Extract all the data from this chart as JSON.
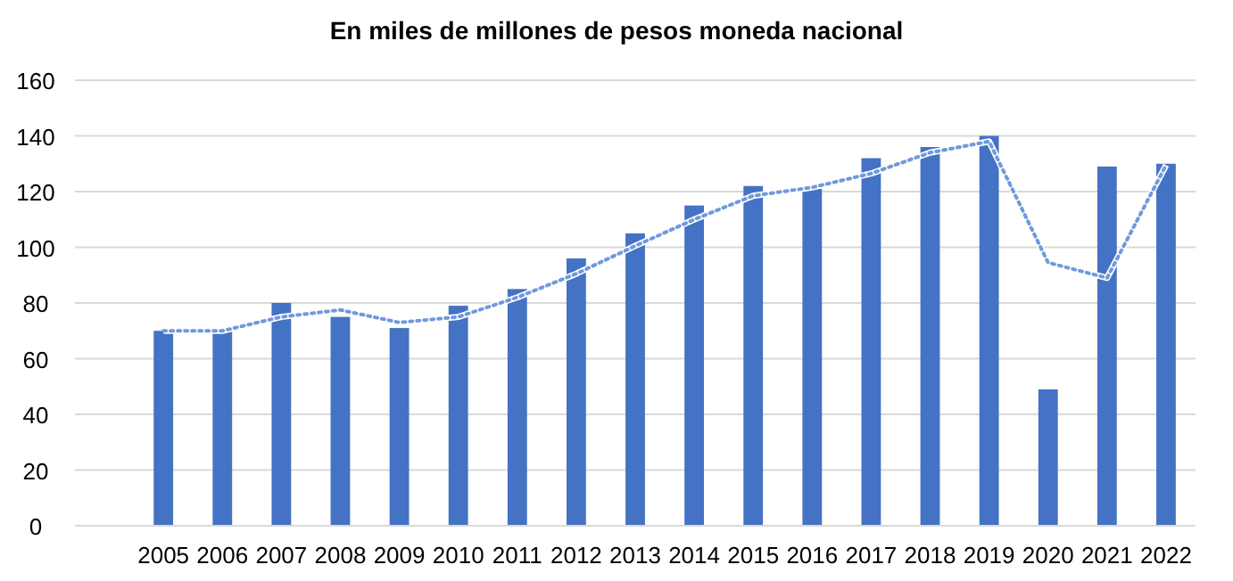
{
  "chart_data": {
    "type": "bar",
    "title": "En miles  de millones  de pesos  moneda  nacional",
    "categories": [
      null,
      "2005",
      "2006",
      "2007",
      "2008",
      "2009",
      "2010",
      "2011",
      "2012",
      "2013",
      "2014",
      "2015",
      "2016",
      "2017",
      "2018",
      "2019",
      "2020",
      "2021",
      "2022"
    ],
    "series": [
      {
        "color": "#4472c4",
        "values": [
          null,
          70,
          70,
          80,
          75,
          71,
          79,
          85,
          96,
          105,
          115,
          122,
          121,
          132,
          136,
          140,
          49,
          129,
          130
        ]
      },
      {
        "type": "line",
        "color": "#7099dc",
        "line_style": "dotted",
        "values": [
          null,
          70,
          70,
          75,
          77.5,
          73,
          75,
          82,
          90.5,
          100.5,
          110,
          118.5,
          121.5,
          126.5,
          134,
          138,
          94.5,
          89,
          129.5
        ]
      }
    ],
    "ylim": [
      0,
      160
    ],
    "yticks": [
      0,
      20,
      40,
      60,
      80,
      100,
      120,
      140,
      160
    ],
    "grid": "y"
  }
}
